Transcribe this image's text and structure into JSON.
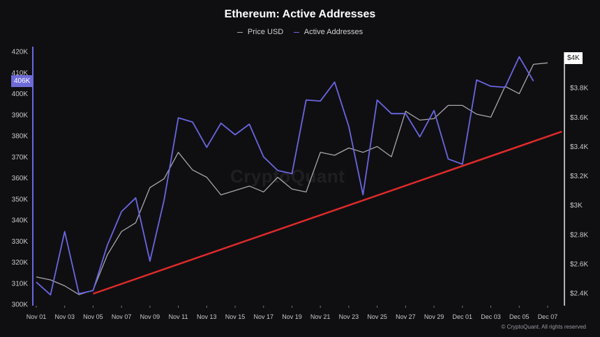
{
  "chart_data": {
    "type": "line",
    "title": "Ethereum: Active Addresses",
    "legend": [
      "Price USD",
      "Active Addresses"
    ],
    "legend_placement": "top-center",
    "grid": false,
    "x_ticks": [
      "Nov 01",
      "Nov 03",
      "Nov 05",
      "Nov 07",
      "Nov 09",
      "Nov 11",
      "Nov 13",
      "Nov 15",
      "Nov 17",
      "Nov 19",
      "Nov 21",
      "Nov 23",
      "Nov 25",
      "Nov 27",
      "Nov 29",
      "Dec 01",
      "Dec 03",
      "Dec 05",
      "Dec 07"
    ],
    "x_start": "Nov 01",
    "y_left": {
      "label": "Active Addresses",
      "range": [
        300000,
        420000
      ],
      "ticks": [
        "300K",
        "310K",
        "320K",
        "330K",
        "340K",
        "350K",
        "360K",
        "370K",
        "380K",
        "390K",
        "400K",
        "410K",
        "420K"
      ]
    },
    "y_right": {
      "label": "Price USD",
      "range": [
        2400,
        4000
      ],
      "ticks": [
        "$2.4K",
        "$2.6K",
        "$2.8K",
        "$3K",
        "$3.2K",
        "$3.4K",
        "$3.6K",
        "$3.8K"
      ]
    },
    "series": [
      {
        "name": "Price USD",
        "axis": "right",
        "color": "#a8a8ac",
        "values": [
          2510,
          2490,
          2450,
          2390,
          2420,
          2660,
          2820,
          2880,
          3120,
          3180,
          3360,
          3240,
          3190,
          3070,
          3100,
          3130,
          3090,
          3190,
          3110,
          3090,
          3360,
          3340,
          3390,
          3360,
          3400,
          3330,
          3640,
          3580,
          3590,
          3680,
          3680,
          3620,
          3600,
          3810,
          3760,
          3960,
          3970
        ]
      },
      {
        "name": "Active Addresses",
        "axis": "left",
        "color": "#6a66e0",
        "values": [
          310500,
          304500,
          334500,
          305000,
          306500,
          328000,
          344000,
          350500,
          320500,
          349500,
          388500,
          386500,
          374500,
          386000,
          380500,
          385500,
          370000,
          363500,
          362000,
          397000,
          396500,
          405500,
          384500,
          352000,
          397000,
          390500,
          390500,
          379500,
          392000,
          369000,
          366500,
          406500,
          403500,
          403000,
          417500,
          406000
        ]
      }
    ],
    "trendline": {
      "color": "#e02a2a",
      "from": {
        "x": "Nov 05",
        "y": 305000
      },
      "to": {
        "x": "Dec 08",
        "y": 382000
      }
    },
    "highlights": {
      "left_value": "406K",
      "right_value": "$4K"
    },
    "watermark": "CryptoQuant",
    "copyright": "© CryptoQuant. All rights reserved"
  }
}
